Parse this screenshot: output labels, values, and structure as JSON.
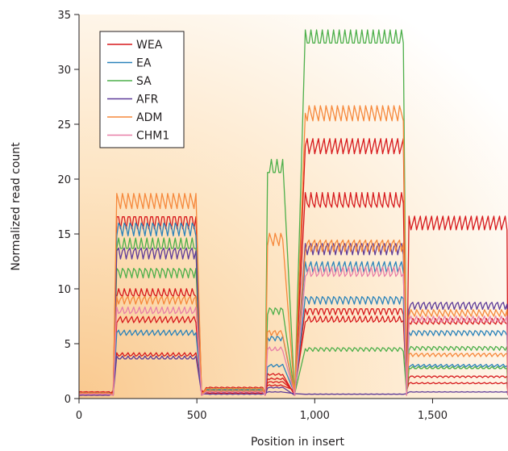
{
  "chart_data": {
    "type": "line",
    "title": "",
    "xlabel": "Position in insert",
    "ylabel": "Normalized read count",
    "xlim": [
      0,
      1820
    ],
    "ylim": [
      0,
      35
    ],
    "xticks": [
      0,
      500,
      1000,
      1500
    ],
    "xtick_labels": [
      "0",
      "500",
      "1,000",
      "1,500"
    ],
    "yticks": [
      0,
      5,
      10,
      15,
      20,
      25,
      30,
      35
    ],
    "ytick_labels": [
      "0",
      "5",
      "10",
      "15",
      "20",
      "25",
      "30",
      "35"
    ],
    "grid": false,
    "legend": "top-left",
    "background": "warm orange gradient fading to the upper right",
    "segments": [
      {
        "name": "seg1",
        "x0": 0,
        "x1": 130,
        "seg_range": [
          0,
          130
        ]
      },
      {
        "name": "seg2",
        "x0": 160,
        "x1": 500
      },
      {
        "name": "seg3",
        "x0": 540,
        "x1": 780
      },
      {
        "name": "seg4",
        "x0": 800,
        "x1": 870
      },
      {
        "name": "seg5",
        "x0": 960,
        "x1": 1380
      },
      {
        "name": "seg6",
        "x0": 1400,
        "x1": 1820
      }
    ],
    "series": [
      {
        "name": "WEA",
        "color": "#d7191c",
        "levels": [
          [
            0.6,
            7.2,
            1.0,
            2.2,
            23.0,
            16.0
          ],
          [
            0.5,
            9.6,
            0.8,
            1.8,
            18.0,
            7.0
          ],
          [
            0.4,
            16.2,
            0.7,
            1.5,
            8.0,
            2.0
          ],
          [
            0.3,
            4.0,
            0.5,
            1.2,
            7.2,
            1.4
          ]
        ]
      },
      {
        "name": "EA",
        "color": "#2b83ba",
        "levels": [
          [
            0.5,
            15.5,
            0.8,
            5.5,
            9.0,
            6.0
          ],
          [
            0.4,
            6.0,
            0.6,
            3.0,
            12.0,
            3.0
          ]
        ]
      },
      {
        "name": "SA",
        "color": "#4daf4a",
        "levels": [
          [
            0.5,
            14.0,
            0.9,
            21.0,
            32.8,
            2.8
          ],
          [
            0.4,
            11.5,
            0.7,
            8.0,
            4.5,
            4.6
          ]
        ]
      },
      {
        "name": "AFR",
        "color": "#5e3c99",
        "levels": [
          [
            0.4,
            13.3,
            0.6,
            1.0,
            13.7,
            8.5
          ],
          [
            0.3,
            3.7,
            0.4,
            0.6,
            0.4,
            0.6
          ]
        ]
      },
      {
        "name": "ADM",
        "color": "#f6883b",
        "levels": [
          [
            0.5,
            18.0,
            0.9,
            14.5,
            26.0,
            7.8
          ],
          [
            0.4,
            9.0,
            0.7,
            6.0,
            14.0,
            4.0
          ]
        ]
      },
      {
        "name": "CHM1",
        "color": "#e87fa7",
        "levels": [
          [
            0.4,
            8.0,
            0.6,
            4.5,
            11.5,
            7.2
          ]
        ]
      }
    ]
  }
}
